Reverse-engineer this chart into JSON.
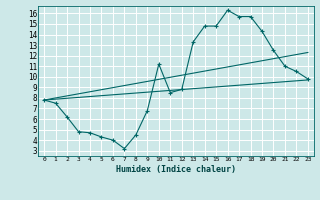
{
  "xlabel": "Humidex (Indice chaleur)",
  "bg_color": "#cde8e8",
  "grid_color": "#b0d8d8",
  "line_color": "#006666",
  "xlim": [
    -0.5,
    23.5
  ],
  "ylim": [
    2.5,
    16.7
  ],
  "xticks": [
    0,
    1,
    2,
    3,
    4,
    5,
    6,
    7,
    8,
    9,
    10,
    11,
    12,
    13,
    14,
    15,
    16,
    17,
    18,
    19,
    20,
    21,
    22,
    23
  ],
  "yticks": [
    3,
    4,
    5,
    6,
    7,
    8,
    9,
    10,
    11,
    12,
    13,
    14,
    15,
    16
  ],
  "series1_x": [
    0,
    1,
    2,
    3,
    4,
    5,
    6,
    7,
    8,
    9,
    10,
    11,
    12,
    13,
    14,
    15,
    16,
    17,
    18,
    19,
    20,
    21,
    22,
    23
  ],
  "series1_y": [
    7.8,
    7.5,
    6.2,
    4.8,
    4.7,
    4.3,
    4.0,
    3.2,
    4.5,
    6.8,
    11.2,
    8.5,
    8.8,
    13.3,
    14.8,
    14.8,
    16.3,
    15.7,
    15.7,
    14.3,
    12.5,
    11.0,
    10.5,
    9.8
  ],
  "series2_x": [
    0,
    23
  ],
  "series2_y": [
    7.8,
    9.7
  ],
  "series3_x": [
    0,
    23
  ],
  "series3_y": [
    7.8,
    12.3
  ]
}
